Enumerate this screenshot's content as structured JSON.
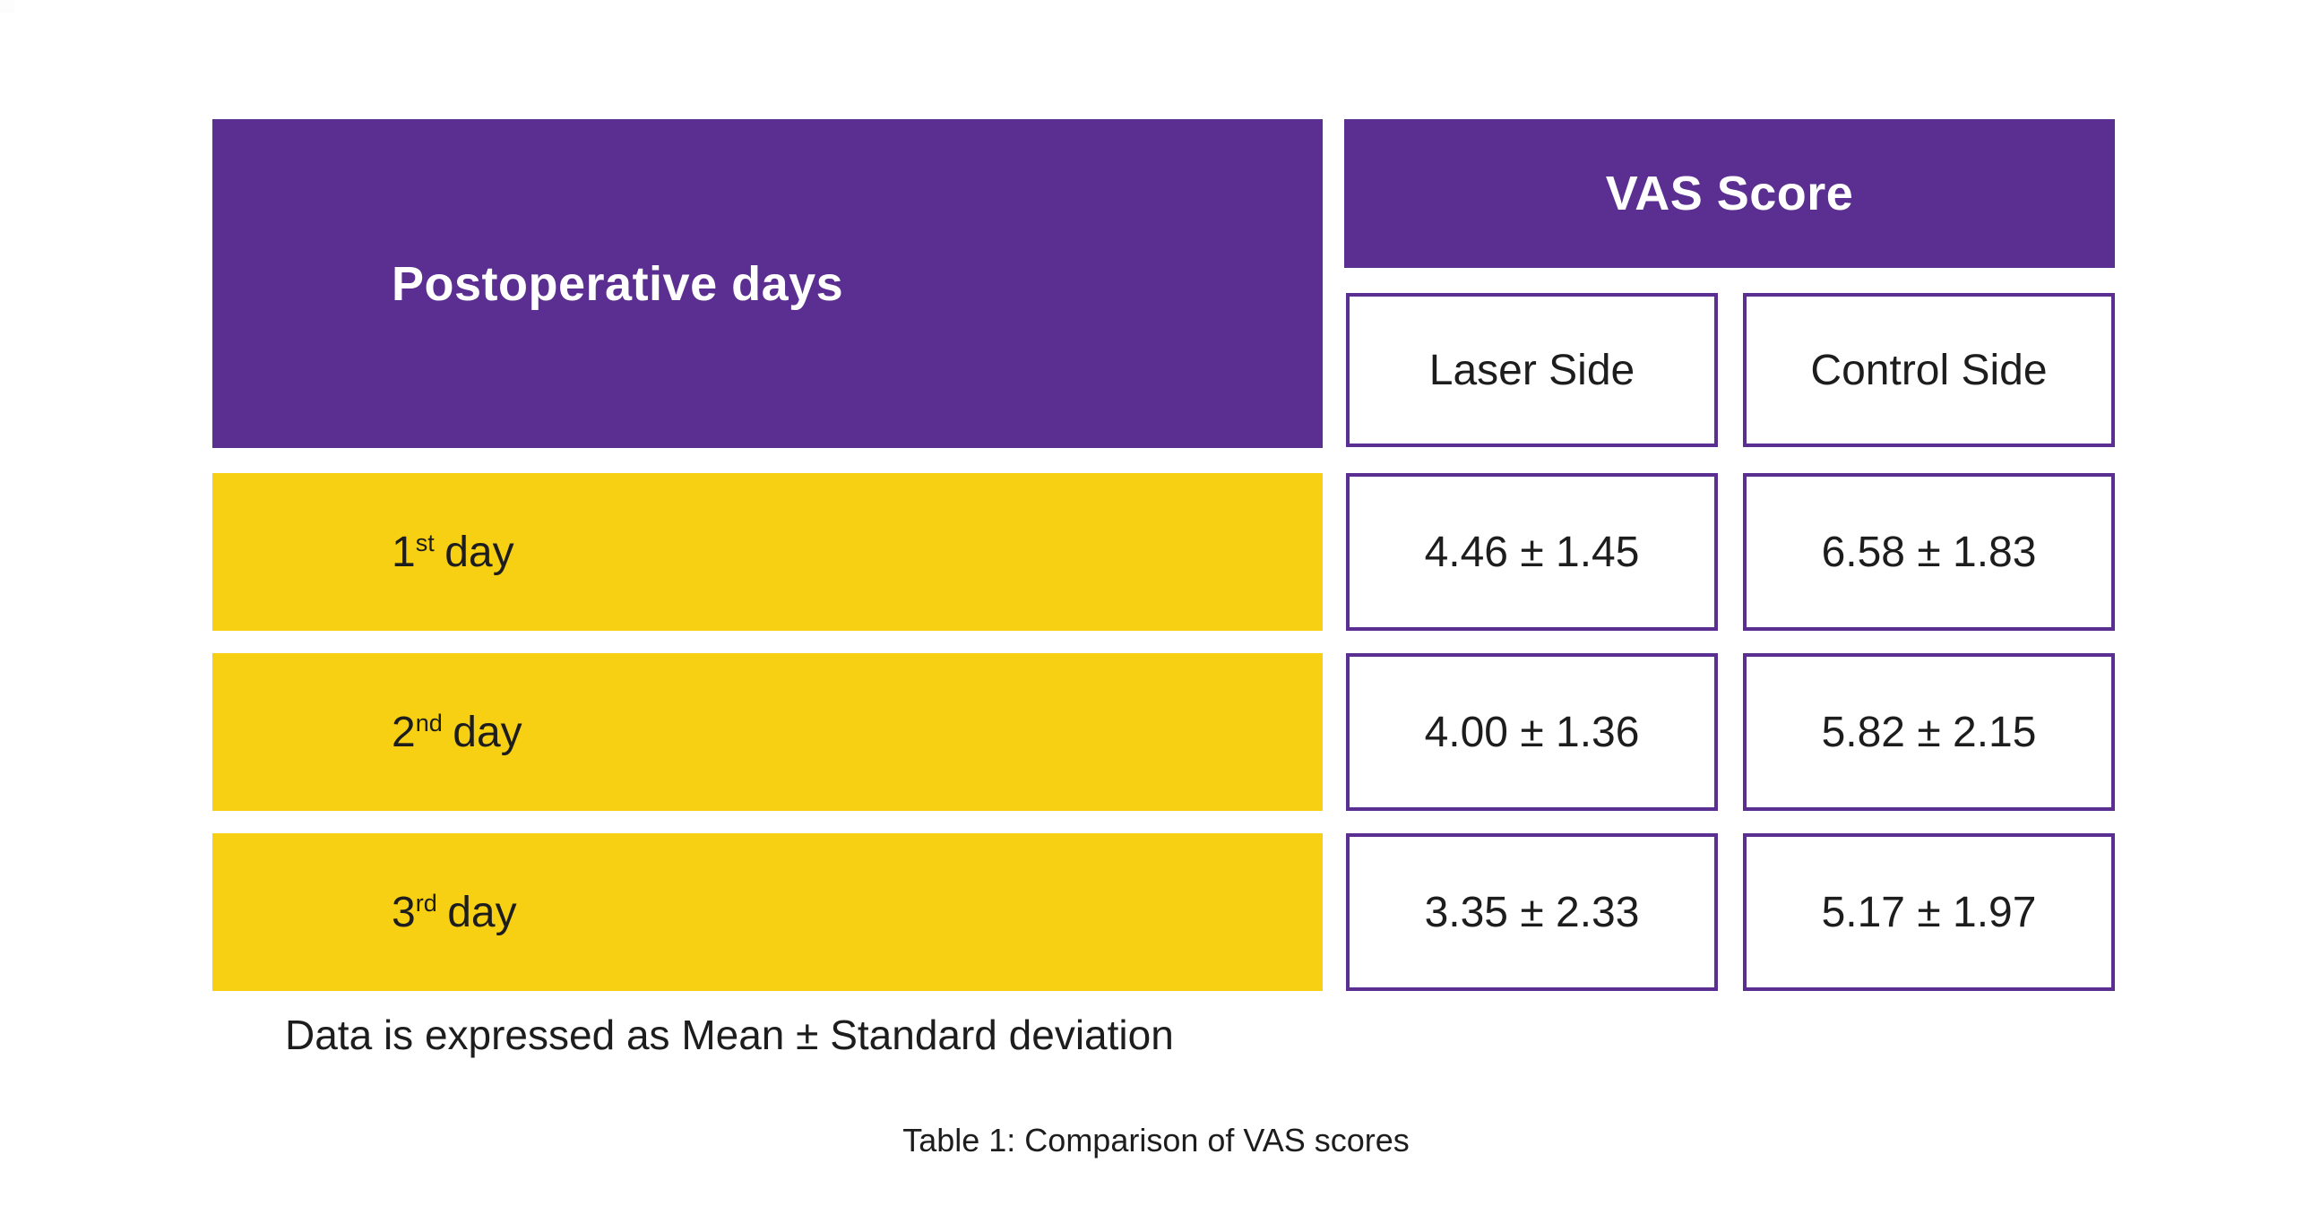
{
  "colors": {
    "purple": "#5b2e91",
    "yellow": "#f7d013",
    "text_dark": "#1d1d1d"
  },
  "table": {
    "header_left": "Postoperative days",
    "header_group": "VAS Score",
    "sub_headers": [
      "Laser Side",
      "Control Side"
    ],
    "rows": [
      {
        "day_num": "1",
        "day_suffix": "st",
        "day_word": "day",
        "laser": "4.46 ± 1.45",
        "control": "6.58 ± 1.83"
      },
      {
        "day_num": "2",
        "day_suffix": "nd",
        "day_word": "day",
        "laser": "4.00 ± 1.36",
        "control": "5.82 ± 2.15"
      },
      {
        "day_num": "3",
        "day_suffix": "rd",
        "day_word": "day",
        "laser": "3.35 ± 2.33",
        "control": "5.17 ± 1.97"
      }
    ],
    "footnote": "Data is expressed as Mean ± Standard deviation",
    "caption": "Table 1: Comparison of VAS scores"
  },
  "chart_data": {
    "type": "table",
    "title": "Table 1: Comparison of VAS scores",
    "columns": [
      "Postoperative days",
      "VAS Score - Laser Side",
      "VAS Score - Control Side"
    ],
    "rows": [
      [
        "1st day",
        "4.46 ± 1.45",
        "6.58 ± 1.83"
      ],
      [
        "2nd day",
        "4.00 ± 1.36",
        "5.82 ± 2.15"
      ],
      [
        "3rd day",
        "3.35 ± 2.33",
        "5.17 ± 1.97"
      ]
    ],
    "note": "Data is expressed as Mean ± Standard deviation"
  }
}
